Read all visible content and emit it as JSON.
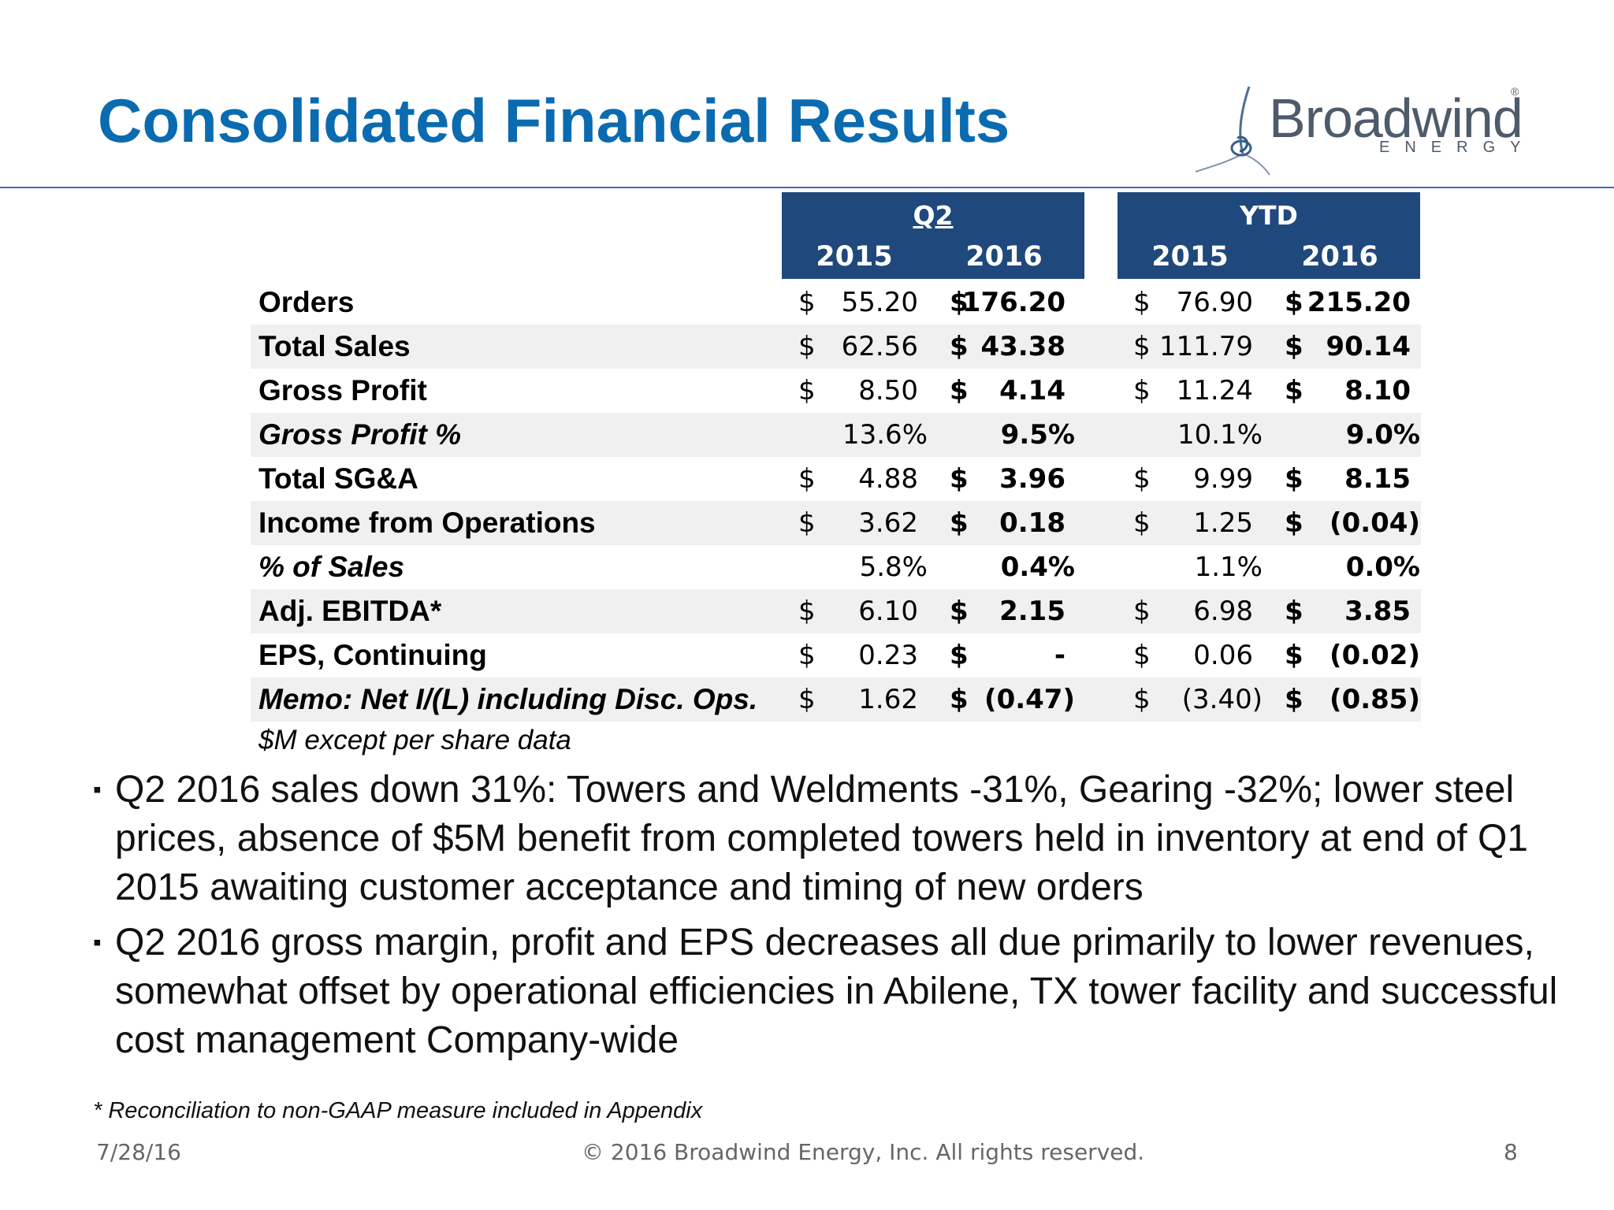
{
  "title": "Consolidated Financial Results",
  "logo": {
    "word": "Broadwind",
    "sub": "ENERGY",
    "reg": "®"
  },
  "header": {
    "q2": {
      "label": "Q2 ",
      "years": [
        "2015",
        "2016"
      ]
    },
    "ytd": {
      "label": "YTD",
      "years": [
        "2015",
        "2016"
      ]
    }
  },
  "rows": [
    {
      "label": "Orders",
      "italic": false,
      "q2_2015": {
        "d": "$",
        "v": "55.20"
      },
      "q2_2016": {
        "d": "$",
        "v": "176.20"
      },
      "ytd_2015": {
        "d": "$",
        "v": "76.90"
      },
      "ytd_2016": {
        "d": "$",
        "v": "215.20"
      }
    },
    {
      "label": "Total Sales",
      "italic": false,
      "q2_2015": {
        "d": "$",
        "v": "62.56"
      },
      "q2_2016": {
        "d": "$",
        "v": "43.38"
      },
      "ytd_2015": {
        "d": "$",
        "v": "111.79"
      },
      "ytd_2016": {
        "d": "$",
        "v": "90.14"
      }
    },
    {
      "label": "Gross Profit",
      "italic": false,
      "q2_2015": {
        "d": "$",
        "v": "8.50"
      },
      "q2_2016": {
        "d": "$",
        "v": "4.14"
      },
      "ytd_2015": {
        "d": "$",
        "v": "11.24"
      },
      "ytd_2016": {
        "d": "$",
        "v": "8.10"
      }
    },
    {
      "label": "Gross Profit %",
      "italic": true,
      "q2_2015": {
        "d": "",
        "v": "13.6%"
      },
      "q2_2016": {
        "d": "",
        "v": "9.5%"
      },
      "ytd_2015": {
        "d": "",
        "v": "10.1%"
      },
      "ytd_2016": {
        "d": "",
        "v": "9.0%"
      }
    },
    {
      "label": "Total SG&A",
      "italic": false,
      "q2_2015": {
        "d": "$",
        "v": "4.88"
      },
      "q2_2016": {
        "d": "$",
        "v": "3.96"
      },
      "ytd_2015": {
        "d": "$",
        "v": "9.99"
      },
      "ytd_2016": {
        "d": "$",
        "v": "8.15"
      }
    },
    {
      "label": "Income from Operations",
      "italic": false,
      "q2_2015": {
        "d": "$",
        "v": "3.62"
      },
      "q2_2016": {
        "d": "$",
        "v": "0.18"
      },
      "ytd_2015": {
        "d": "$",
        "v": "1.25"
      },
      "ytd_2016": {
        "d": "$",
        "v": "(0.04)"
      }
    },
    {
      "label": "% of Sales",
      "italic": true,
      "q2_2015": {
        "d": "",
        "v": "5.8%"
      },
      "q2_2016": {
        "d": "",
        "v": "0.4%"
      },
      "ytd_2015": {
        "d": "",
        "v": "1.1%"
      },
      "ytd_2016": {
        "d": "",
        "v": "0.0%"
      }
    },
    {
      "label": "Adj. EBITDA*",
      "italic": false,
      "q2_2015": {
        "d": "$",
        "v": "6.10"
      },
      "q2_2016": {
        "d": "$",
        "v": "2.15"
      },
      "ytd_2015": {
        "d": "$",
        "v": "6.98"
      },
      "ytd_2016": {
        "d": "$",
        "v": "3.85"
      }
    },
    {
      "label": "EPS, Continuing",
      "italic": false,
      "q2_2015": {
        "d": "$",
        "v": "0.23"
      },
      "q2_2016": {
        "d": "$",
        "v": "-"
      },
      "ytd_2015": {
        "d": "$",
        "v": "0.06"
      },
      "ytd_2016": {
        "d": "$",
        "v": "(0.02)"
      }
    },
    {
      "label": "Memo: Net I/(L) including Disc. Ops.",
      "italic": true,
      "q2_2015": {
        "d": "$",
        "v": "1.62"
      },
      "q2_2016": {
        "d": "$",
        "v": "(0.47)"
      },
      "ytd_2015": {
        "d": "$",
        "v": "(3.40)"
      },
      "ytd_2016": {
        "d": "$",
        "v": "(0.85)"
      }
    }
  ],
  "unit_note": "$M except per share data",
  "bullets": [
    "Q2 2016 sales down 31%: Towers and Weldments -31%, Gearing -32%; lower steel prices, absence of $5M benefit from completed towers held in inventory at end of Q1 2015 awaiting customer acceptance and timing of new orders",
    "Q2 2016 gross margin, profit and EPS decreases all due primarily to lower revenues, somewhat offset by operational efficiencies in Abilene, TX tower facility and successful cost management Company-wide"
  ],
  "bullet_marker": "▪",
  "footnote": "* Reconciliation to non-GAAP measure included in Appendix",
  "footer": {
    "date": "7/28/16",
    "copyright": "© 2016 Broadwind Energy, Inc. All rights reserved.",
    "page": "8"
  }
}
